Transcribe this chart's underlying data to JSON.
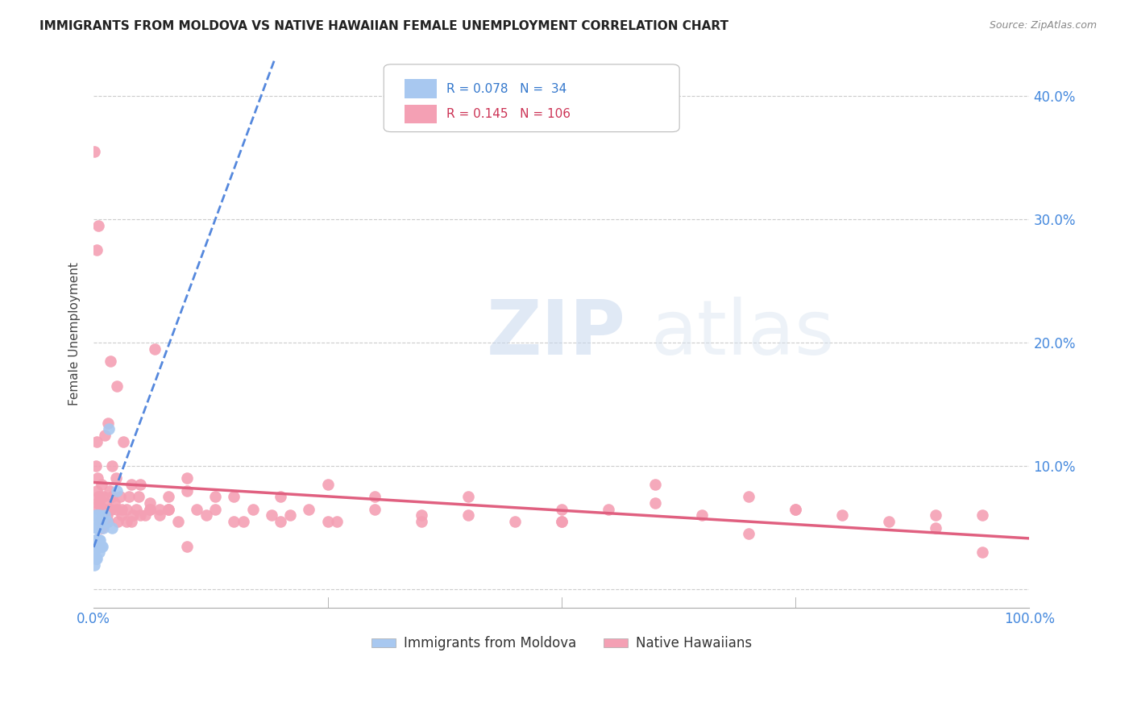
{
  "title": "IMMIGRANTS FROM MOLDOVA VS NATIVE HAWAIIAN FEMALE UNEMPLOYMENT CORRELATION CHART",
  "source": "Source: ZipAtlas.com",
  "ylabel": "Female Unemployment",
  "y_ticks": [
    0.0,
    0.1,
    0.2,
    0.3,
    0.4
  ],
  "y_tick_labels": [
    "",
    "10.0%",
    "20.0%",
    "30.0%",
    "40.0%"
  ],
  "xlim": [
    0.0,
    1.0
  ],
  "ylim": [
    -0.015,
    0.43
  ],
  "legend_r_blue": "0.078",
  "legend_n_blue": "34",
  "legend_r_pink": "0.145",
  "legend_n_pink": "106",
  "blue_color": "#a8c8f0",
  "pink_color": "#f4a0b4",
  "blue_line_color": "#5588dd",
  "pink_line_color": "#e06080",
  "watermark_zip": "ZIP",
  "watermark_atlas": "atlas",
  "blue_scatter_x": [
    0.001,
    0.001,
    0.001,
    0.002,
    0.002,
    0.002,
    0.002,
    0.002,
    0.003,
    0.003,
    0.003,
    0.003,
    0.003,
    0.004,
    0.004,
    0.004,
    0.004,
    0.005,
    0.005,
    0.005,
    0.006,
    0.006,
    0.006,
    0.007,
    0.007,
    0.008,
    0.008,
    0.009,
    0.01,
    0.012,
    0.014,
    0.016,
    0.02,
    0.025
  ],
  "blue_scatter_y": [
    0.02,
    0.03,
    0.04,
    0.04,
    0.05,
    0.06,
    0.035,
    0.025,
    0.04,
    0.05,
    0.06,
    0.035,
    0.025,
    0.04,
    0.05,
    0.035,
    0.06,
    0.04,
    0.055,
    0.035,
    0.04,
    0.055,
    0.03,
    0.04,
    0.06,
    0.035,
    0.055,
    0.035,
    0.05,
    0.06,
    0.055,
    0.13,
    0.05,
    0.08
  ],
  "pink_scatter_x": [
    0.001,
    0.002,
    0.003,
    0.003,
    0.004,
    0.004,
    0.005,
    0.005,
    0.006,
    0.007,
    0.007,
    0.008,
    0.008,
    0.009,
    0.01,
    0.01,
    0.011,
    0.011,
    0.012,
    0.013,
    0.014,
    0.015,
    0.016,
    0.017,
    0.018,
    0.019,
    0.02,
    0.022,
    0.024,
    0.026,
    0.028,
    0.03,
    0.032,
    0.035,
    0.038,
    0.04,
    0.042,
    0.045,
    0.048,
    0.05,
    0.055,
    0.06,
    0.065,
    0.07,
    0.08,
    0.09,
    0.1,
    0.11,
    0.12,
    0.13,
    0.15,
    0.17,
    0.19,
    0.21,
    0.23,
    0.26,
    0.3,
    0.35,
    0.4,
    0.45,
    0.5,
    0.55,
    0.6,
    0.65,
    0.7,
    0.75,
    0.8,
    0.85,
    0.9,
    0.95,
    0.003,
    0.005,
    0.008,
    0.012,
    0.015,
    0.02,
    0.025,
    0.03,
    0.04,
    0.05,
    0.06,
    0.07,
    0.08,
    0.1,
    0.13,
    0.16,
    0.2,
    0.25,
    0.3,
    0.4,
    0.5,
    0.6,
    0.75,
    0.9,
    0.025,
    0.035,
    0.06,
    0.08,
    0.1,
    0.15,
    0.2,
    0.25,
    0.35,
    0.5,
    0.7,
    0.95
  ],
  "pink_scatter_y": [
    0.355,
    0.1,
    0.08,
    0.12,
    0.07,
    0.09,
    0.075,
    0.065,
    0.07,
    0.055,
    0.075,
    0.065,
    0.085,
    0.06,
    0.06,
    0.075,
    0.055,
    0.065,
    0.065,
    0.07,
    0.06,
    0.055,
    0.065,
    0.08,
    0.185,
    0.065,
    0.075,
    0.07,
    0.09,
    0.055,
    0.075,
    0.06,
    0.12,
    0.065,
    0.075,
    0.085,
    0.06,
    0.065,
    0.075,
    0.06,
    0.06,
    0.07,
    0.195,
    0.065,
    0.065,
    0.055,
    0.08,
    0.065,
    0.06,
    0.075,
    0.055,
    0.065,
    0.06,
    0.06,
    0.065,
    0.055,
    0.075,
    0.06,
    0.06,
    0.055,
    0.065,
    0.065,
    0.085,
    0.06,
    0.075,
    0.065,
    0.06,
    0.055,
    0.06,
    0.06,
    0.275,
    0.295,
    0.05,
    0.125,
    0.135,
    0.1,
    0.065,
    0.065,
    0.055,
    0.085,
    0.065,
    0.06,
    0.075,
    0.09,
    0.065,
    0.055,
    0.075,
    0.085,
    0.065,
    0.075,
    0.055,
    0.07,
    0.065,
    0.05,
    0.165,
    0.055,
    0.065,
    0.065,
    0.035,
    0.075,
    0.055,
    0.055,
    0.055,
    0.055,
    0.045,
    0.03
  ]
}
